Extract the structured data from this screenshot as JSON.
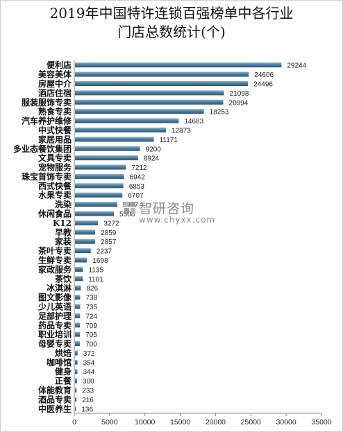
{
  "chart_data": {
    "type": "bar",
    "orientation": "horizontal",
    "title_lines": [
      "2019年中国特许连锁百强榜单中各行业",
      "门店总数统计(个)"
    ],
    "categories": [
      "便利店",
      "美容美体",
      "房屋中介",
      "酒店住宿",
      "服装服饰专卖",
      "熟食专卖",
      "汽车养护维修",
      "中式快餐",
      "家居用品",
      "多业态餐饮集团",
      "文具专卖",
      "宠物服务",
      "珠宝首饰专卖",
      "西式快餐",
      "水果专卖",
      "洗染",
      "休闲食品",
      "K12",
      "早教",
      "家装",
      "茶叶专卖",
      "生鲜专卖",
      "家政服务",
      "茶饮",
      "冰淇淋",
      "图文影像",
      "少儿英语",
      "足部护理",
      "药品专卖",
      "职业培训",
      "母婴专卖",
      "烘焙",
      "咖啡馆",
      "健身",
      "正餐",
      "体能教育",
      "酒品专卖",
      "中医养生"
    ],
    "values": [
      29244,
      24606,
      24496,
      21098,
      20994,
      18253,
      14683,
      12873,
      11171,
      9200,
      8924,
      7212,
      6942,
      6853,
      6707,
      5977,
      5508,
      3272,
      2859,
      2857,
      2237,
      1698,
      1135,
      1101,
      826,
      738,
      735,
      724,
      709,
      705,
      700,
      372,
      354,
      344,
      300,
      233,
      216,
      136
    ],
    "value_labels": [
      "29244",
      "24606",
      "24496",
      "21098",
      "20994",
      "18253",
      "14683",
      "12873",
      "11171",
      "9200",
      "8924",
      "7212",
      "6942",
      "6853",
      "6707",
      "5977",
      "5508",
      "3272",
      "2859",
      "2857",
      "2237",
      "1698",
      "1135",
      "1101",
      "826",
      "738",
      "735",
      "724",
      "709",
      "705",
      "700",
      "372",
      "354",
      "344",
      "300",
      "233",
      "216",
      "136"
    ],
    "x_ticks": [
      "0",
      "5000",
      "10000",
      "15000",
      "20000",
      "25000",
      "30000",
      "35000"
    ],
    "xlim": [
      0,
      35000
    ],
    "grid": false,
    "bar_color": "#4b7a97"
  },
  "watermark": {
    "text_cn": "智研咨询",
    "text_en": "www.chyxx.com"
  }
}
